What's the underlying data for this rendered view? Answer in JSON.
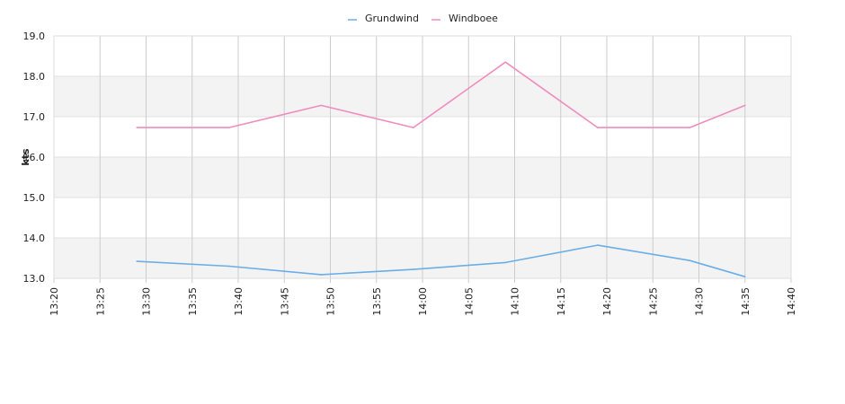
{
  "chart_data": {
    "type": "line",
    "xlabel": "",
    "ylabel": "kts",
    "x_ticks": [
      "13:20",
      "13:25",
      "13:30",
      "13:35",
      "13:40",
      "13:45",
      "13:50",
      "13:55",
      "14:00",
      "14:05",
      "14:10",
      "14:15",
      "14:20",
      "14:25",
      "14:30",
      "14:35",
      "14:40"
    ],
    "y_ticks": [
      "13.0",
      "14.0",
      "15.0",
      "16.0",
      "17.0",
      "18.0",
      "19.0"
    ],
    "xlim": [
      "13:20",
      "14:40"
    ],
    "ylim": [
      13.0,
      19.0
    ],
    "grid": true,
    "legend_position": "top-center",
    "series": [
      {
        "name": "Grundwind",
        "color": "#6aaee8",
        "points": [
          {
            "x": "13:29",
            "y": 13.42
          },
          {
            "x": "13:39",
            "y": 13.3
          },
          {
            "x": "13:49",
            "y": 13.09
          },
          {
            "x": "13:59",
            "y": 13.22
          },
          {
            "x": "14:09",
            "y": 13.39
          },
          {
            "x": "14:19",
            "y": 13.82
          },
          {
            "x": "14:29",
            "y": 13.44
          },
          {
            "x": "14:35",
            "y": 13.04
          }
        ]
      },
      {
        "name": "Windboee",
        "color": "#f08cbf",
        "points": [
          {
            "x": "13:29",
            "y": 16.73
          },
          {
            "x": "13:39",
            "y": 16.73
          },
          {
            "x": "13:49",
            "y": 17.28
          },
          {
            "x": "13:59",
            "y": 16.73
          },
          {
            "x": "14:09",
            "y": 18.35
          },
          {
            "x": "14:19",
            "y": 16.73
          },
          {
            "x": "14:29",
            "y": 16.73
          },
          {
            "x": "14:35",
            "y": 17.28
          }
        ]
      }
    ]
  }
}
